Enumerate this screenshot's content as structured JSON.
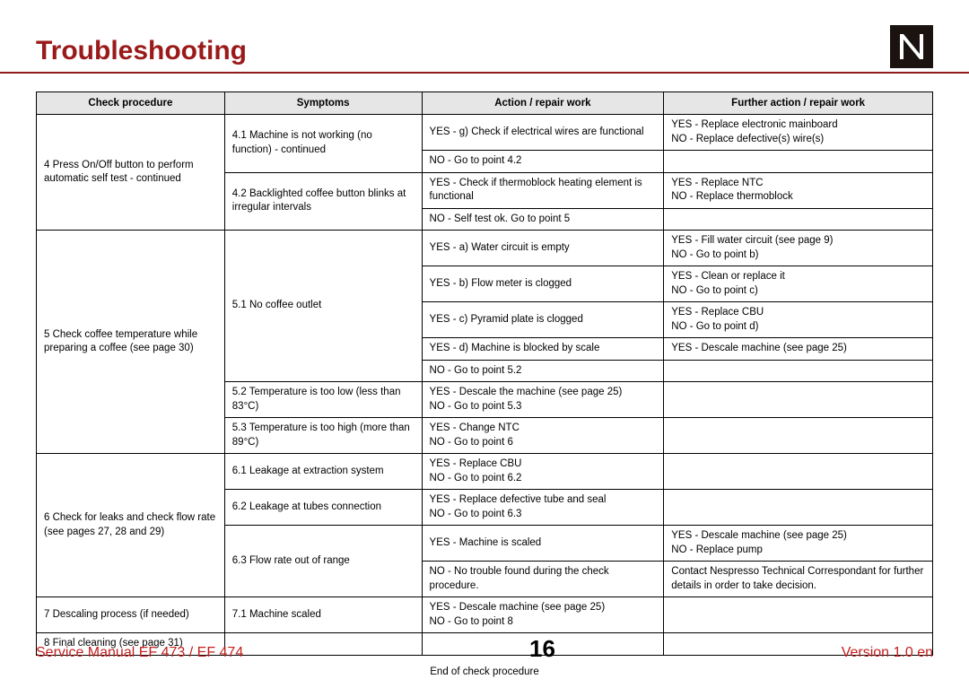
{
  "header": {
    "title": "Troubleshooting"
  },
  "columns": {
    "c1": "Check procedure",
    "c2": "Symptoms",
    "c3": "Action / repair work",
    "c4": "Further action / repair work"
  },
  "rows": {
    "r1c1": "4 Press On/Off button to perform automatic self test - continued",
    "r1c2": "4.1 Machine is not working (no function) - continued",
    "r1c3": "YES - g) Check if electrical wires are functional",
    "r1c4": "YES - Replace electronic mainboard\nNO - Replace defective(s) wire(s)",
    "r2c3": "NO - Go to point 4.2",
    "r3c2": "4.2 Backlighted coffee button blinks at irregular intervals",
    "r3c3": "YES - Check if thermoblock heating element is functional",
    "r3c4": "YES - Replace NTC\nNO - Replace thermoblock",
    "r4c3": "NO - Self test ok. Go to point 5",
    "r5c1": "5 Check coffee temperature while preparing a coffee (see page 30)",
    "r5c2": "5.1 No coffee outlet",
    "r5c3": "YES - a) Water circuit is empty",
    "r5c4": "YES - Fill water circuit (see page 9)\nNO - Go to point b)",
    "r6c3": "YES - b) Flow meter is clogged",
    "r6c4": "YES - Clean or replace it\nNO - Go to point c)",
    "r7c3": "YES - c) Pyramid plate is clogged",
    "r7c4": "YES - Replace CBU\nNO - Go to point d)",
    "r8c3": "YES - d) Machine is blocked by scale",
    "r8c4": "YES - Descale machine (see page 25)",
    "r9c3": "NO - Go to point 5.2",
    "r10c2": "5.2 Temperature is too low (less than 83°C)",
    "r10c3": "YES - Descale the machine (see page 25)\nNO - Go to point 5.3",
    "r11c2": "5.3 Temperature is too high (more than 89°C)",
    "r11c3": "YES - Change NTC\nNO - Go to point 6",
    "r12c1": "6 Check for leaks and check flow rate (see pages 27, 28 and 29)",
    "r12c2": "6.1 Leakage at extraction system",
    "r12c3": "YES - Replace CBU\nNO - Go to point 6.2",
    "r13c2": "6.2 Leakage at tubes connection",
    "r13c3": "YES - Replace defective tube and seal\nNO - Go to point 6.3",
    "r14c2": "6.3 Flow rate out of range",
    "r14c3": "YES - Machine is scaled",
    "r14c4": "YES - Descale machine (see page 25)\nNO - Replace pump",
    "r15c3": "NO - No trouble found during the check procedure.",
    "r15c4": "Contact Nespresso Technical Correspondant for further details in order to take decision.",
    "r16c1": "7 Descaling process (if needed)",
    "r16c2": "7.1 Machine scaled",
    "r16c3": "YES - Descale machine (see page 25)\nNO - Go to point 8",
    "r17c1": "8 Final cleaning (see page 31)"
  },
  "footnote": "End of check procedure",
  "footer": {
    "left": "Service Manual EF 473 / EF 474",
    "page": "16",
    "right": "Version 1.0  en"
  },
  "style": {
    "title_color": "#9a1a1a",
    "border_color": "#000000",
    "header_bg": "#e6e6e6",
    "footer_color": "#c41e1e"
  }
}
